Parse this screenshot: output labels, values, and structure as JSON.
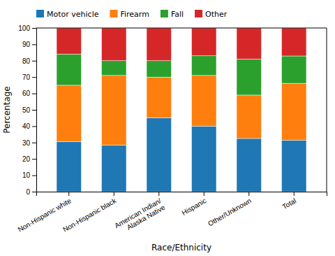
{
  "chart_data": {
    "type": "bar",
    "stacked": true,
    "categories": [
      "Non-Hispanic white",
      "Non-Hispanic black",
      "American Indian/\nAlaska Native",
      "Hispanic",
      "Other/Unknown",
      "Total"
    ],
    "series": [
      {
        "name": "Motor vehicle",
        "values": [
          30.5,
          28.5,
          45.0,
          40.0,
          32.5,
          31.4
        ]
      },
      {
        "name": "Firearm",
        "values": [
          34.5,
          42.5,
          25.0,
          31.0,
          26.5,
          34.8
        ]
      },
      {
        "name": "Fall",
        "values": [
          19.0,
          9.0,
          10.0,
          12.0,
          22.0,
          16.7
        ]
      },
      {
        "name": "Other",
        "values": [
          16.0,
          20.0,
          20.0,
          17.0,
          19.0,
          17.1
        ]
      }
    ],
    "x_label": "Race/Ethnicity",
    "y_label": "Percentage",
    "ylim": [
      0,
      100
    ],
    "yticks": [
      0,
      10,
      20,
      30,
      40,
      50,
      60,
      70,
      80,
      90,
      100
    ],
    "grid": false,
    "legend": "top-left"
  }
}
